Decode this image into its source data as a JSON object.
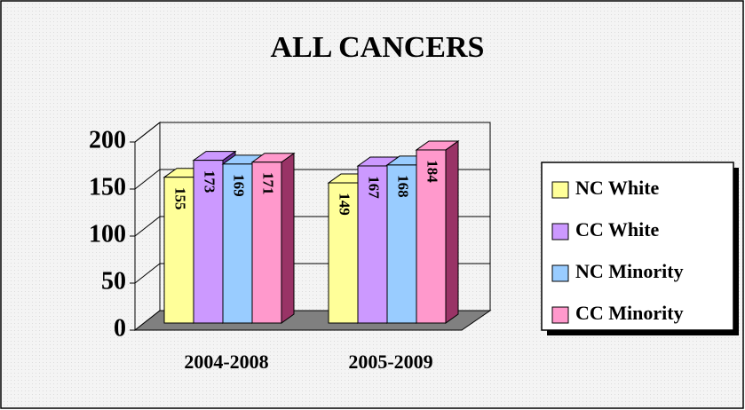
{
  "chart_data": {
    "type": "bar3d",
    "title": "ALL CANCERS",
    "categories": [
      "2004-2008",
      "2005-2009"
    ],
    "series": [
      {
        "name": "NC White",
        "color": "#ffff99",
        "side": "#999933",
        "values": [
          155,
          149
        ]
      },
      {
        "name": "CC White",
        "color": "#cc99ff",
        "side": "#663399",
        "values": [
          173,
          167
        ]
      },
      {
        "name": "NC Minority",
        "color": "#99ccff",
        "side": "#336699",
        "values": [
          169,
          168
        ]
      },
      {
        "name": "CC Minority",
        "color": "#ff99cc",
        "side": "#993366",
        "values": [
          171,
          184
        ]
      }
    ],
    "ylim": [
      0,
      200
    ],
    "yticks": [
      0,
      50,
      100,
      150,
      200
    ],
    "grid": true,
    "legend": "right"
  }
}
